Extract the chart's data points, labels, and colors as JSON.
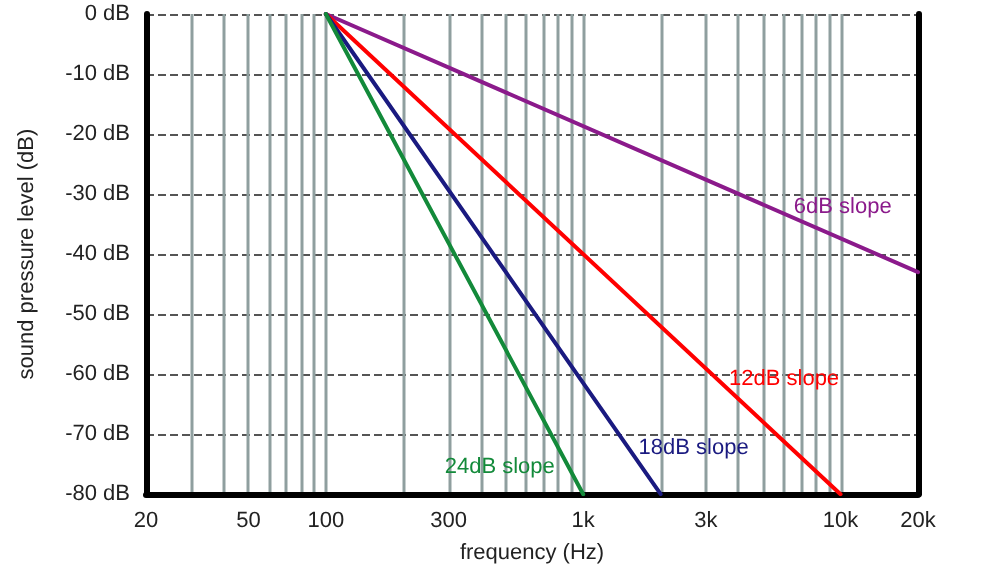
{
  "chart_data": {
    "type": "line",
    "xlabel": "frequency (Hz)",
    "ylabel": "sound pressure level (dB)",
    "log": "x",
    "grid": true,
    "marker": "none",
    "line_style": "solid",
    "xlim": [
      20,
      20000
    ],
    "xticks": [
      20,
      {
        "value": 30,
        "label": null
      },
      {
        "value": 40,
        "label": null
      },
      50,
      {
        "value": 60,
        "label": null
      },
      {
        "value": 70,
        "label": null
      },
      {
        "value": 80,
        "label": null
      },
      {
        "value": 90,
        "label": null
      },
      100,
      {
        "value": 200,
        "label": null
      },
      300,
      {
        "value": 400,
        "label": null
      },
      {
        "value": 500,
        "label": null
      },
      {
        "value": 600,
        "label": null
      },
      {
        "value": 700,
        "label": null
      },
      {
        "value": 800,
        "label": null
      },
      {
        "value": 900,
        "label": null
      },
      {
        "value": 1000,
        "label": "1k"
      },
      {
        "value": 2000,
        "label": null
      },
      {
        "value": 3000,
        "label": "3k"
      },
      {
        "value": 4000,
        "label": null
      },
      {
        "value": 5000,
        "label": null
      },
      {
        "value": 6000,
        "label": null
      },
      {
        "value": 7000,
        "label": null
      },
      {
        "value": 8000,
        "label": null
      },
      {
        "value": 9000,
        "label": null
      },
      {
        "value": 10000,
        "label": "10k"
      },
      {
        "value": 20000,
        "label": "20k"
      }
    ],
    "ylim": [
      -80,
      0
    ],
    "yticks": [
      {
        "value": -80,
        "label": "-80 dB"
      },
      {
        "value": -70,
        "label": "-70 dB"
      },
      {
        "value": -60,
        "label": "-60 dB"
      },
      {
        "value": -50,
        "label": "-50 dB"
      },
      {
        "value": -40,
        "label": "-40 dB"
      },
      {
        "value": -30,
        "label": "-30 dB"
      },
      {
        "value": -20,
        "label": "-20 dB"
      },
      {
        "value": -10,
        "label": "-10 dB"
      },
      {
        "value": 0,
        "label": "0 dB"
      }
    ],
    "series": [
      {
        "name": "6dB slope",
        "color": "#8b1a8b",
        "x": [
          100,
          20000
        ],
        "values": [
          0,
          -43
        ]
      },
      {
        "name": "12dB slope",
        "color": "#ff0000",
        "x": [
          100,
          10000
        ],
        "values": [
          0,
          -80
        ]
      },
      {
        "name": "18dB slope",
        "color": "#1a1a80",
        "x": [
          100,
          2000
        ],
        "values": [
          0,
          -80
        ]
      },
      {
        "name": "24dB slope",
        "color": "#138a3a",
        "x": [
          100,
          1000
        ],
        "values": [
          0,
          -80
        ]
      }
    ]
  }
}
